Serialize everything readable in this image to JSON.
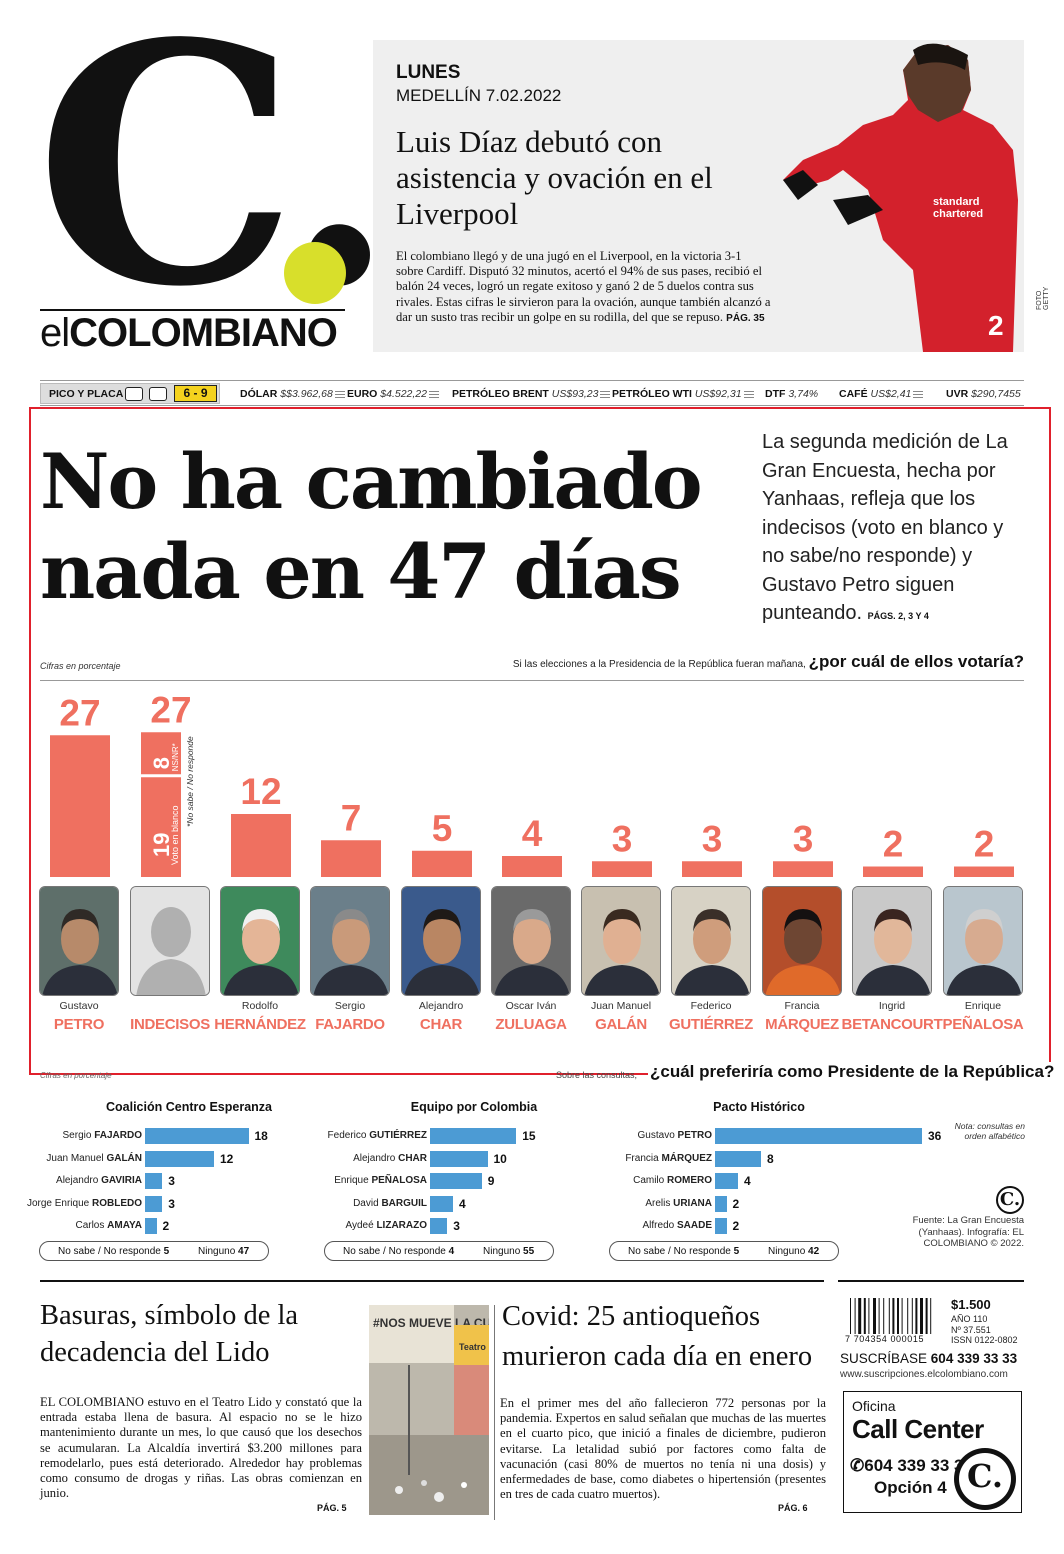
{
  "masthead": {
    "name_prefix": "el",
    "name_main": "COLOMBIANO",
    "logo_letter": "C."
  },
  "teaser": {
    "day": "LUNES",
    "date": "MEDELLÍN 7.02.2022",
    "headline": "Luis Díaz debutó con asistencia y ovación en el Liverpool",
    "body": "El colombiano llegó y de una jugó en el Liverpool, en la victoria 3-1 sobre Cardiff. Disputó 32 minutos, acertó el 94% de sus pases, recibió el balón 24 veces, logró un regate exitoso y ganó 2 de 5 duelos contra sus rivales. Estas cifras le sirvieron para la ovación, aunque también alcanzó a dar un susto tras recibir un golpe en su rodilla, del que se repuso.",
    "page": "PÁG. 35",
    "photo_credit": "FOTO GETTY"
  },
  "ticker": {
    "pico_label": "PICO Y PLACA",
    "pico_digits": "6 - 9",
    "items": [
      {
        "label": "DÓLAR",
        "value": "$$3.962,68"
      },
      {
        "label": "EURO",
        "value": "$4.522,22"
      },
      {
        "label": "PETRÓLEO BRENT",
        "value": "US$93,23"
      },
      {
        "label": "PETRÓLEO WTI",
        "value": "US$92,31"
      },
      {
        "label": "DTF",
        "value": "3,74%"
      },
      {
        "label": "CAFÉ",
        "value": "US$2,41"
      },
      {
        "label": "UVR",
        "value": "$290,7455"
      }
    ]
  },
  "main": {
    "headline_line1": "No ha cambiado",
    "headline_line2": "nada en 47 días",
    "deck": "La segunda medición de La Gran Encuesta, hecha por Yanhaas, refleja que los indecisos (voto en blanco y no sabe/no responde) y Gustavo Petro siguen punteando.",
    "deck_pages": "PÁGS. 2, 3 Y 4",
    "chart_note": "Cifras en porcentaje",
    "question_prefix": "Si las elecciones a la Presidencia de la República fueran mañana,",
    "question": "¿por cuál de ellos votaría?"
  },
  "chart_data": {
    "type": "bar",
    "unit": "Cifras en porcentaje",
    "title": "Si las elecciones a la Presidencia de la República fueran mañana, ¿por cuál de ellos votaría?",
    "color": "#ef7060",
    "categories": [
      "PETRO",
      "INDECISOS",
      "HERNÁNDEZ",
      "FAJARDO",
      "CHAR",
      "ZULUAGA",
      "GALÁN",
      "GUTIÉRREZ",
      "MÁRQUEZ",
      "BETANCOURT",
      "PEÑALOSA"
    ],
    "first_names": [
      "Gustavo",
      "",
      "Rodolfo",
      "Sergio",
      "Alejandro",
      "Oscar Iván",
      "Juan Manuel",
      "Federico",
      "Francia",
      "Ingrid",
      "Enrique"
    ],
    "values": [
      27,
      27,
      12,
      7,
      5,
      4,
      3,
      3,
      3,
      2,
      2
    ],
    "indecisos_breakdown": [
      {
        "label": "Voto en blanco",
        "value": 19
      },
      {
        "label": "NS/NR*",
        "value": 8
      }
    ],
    "indecisos_footnote": "*No sabe / No responde"
  },
  "consultas": {
    "title": "¿cuál preferiría como Presidente de la República?",
    "subtitle": "Sobre las consultas,",
    "note": "Cifras en porcentaje",
    "legal_note": "Nota: consultas en orden alfabético",
    "source": "Fuente: La Gran Encuesta (Yanhaas). Infografía: EL COLOMBIANO © 2022.",
    "coalitions": [
      {
        "name": "Coalición Centro Esperanza",
        "rows": [
          {
            "first": "Sergio",
            "last": "FAJARDO",
            "value": 18
          },
          {
            "first": "Juan Manuel",
            "last": "GALÁN",
            "value": 12
          },
          {
            "first": "Alejandro",
            "last": "GAVIRIA",
            "value": 3
          },
          {
            "first": "Jorge Enrique",
            "last": "ROBLEDO",
            "value": 3
          },
          {
            "first": "Carlos",
            "last": "AMAYA",
            "value": 2
          }
        ],
        "ns_label": "No sabe / No responde",
        "ns_value": "5",
        "ninguno_label": "Ninguno",
        "ninguno_value": "47"
      },
      {
        "name": "Equipo por Colombia",
        "rows": [
          {
            "first": "Federico",
            "last": "GUTIÉRREZ",
            "value": 15
          },
          {
            "first": "Alejandro",
            "last": "CHAR",
            "value": 10
          },
          {
            "first": "Enrique",
            "last": "PEÑALOSA",
            "value": 9
          },
          {
            "first": "David",
            "last": "BARGUIL",
            "value": 4
          },
          {
            "first": "Aydeé",
            "last": "LIZARAZO",
            "value": 3
          }
        ],
        "ns_label": "No sabe / No responde",
        "ns_value": "4",
        "ninguno_label": "Ninguno",
        "ninguno_value": "55"
      },
      {
        "name": "Pacto Histórico",
        "rows": [
          {
            "first": "Gustavo",
            "last": "PETRO",
            "value": 36
          },
          {
            "first": "Francia",
            "last": "MÁRQUEZ",
            "value": 8
          },
          {
            "first": "Camilo",
            "last": "ROMERO",
            "value": 4
          },
          {
            "first": "Arelis",
            "last": "URIANA",
            "value": 2
          },
          {
            "first": "Alfredo",
            "last": "SAADE",
            "value": 2
          }
        ],
        "ns_label": "No sabe / No responde",
        "ns_value": "5",
        "ninguno_label": "Ninguno",
        "ninguno_value": "42"
      }
    ]
  },
  "stories": {
    "lido_head": "Basuras, símbolo de la decadencia del Lido",
    "lido_body": "EL COLOMBIANO estuvo en el Teatro Lido y constató que la entrada estaba llena de basura. Al espacio no se le hizo mantenimiento durante un mes, lo que causó que los desechos se acumularan. La Alcaldía invertirá $3.200 millones para remodelarlo, pues está deteriorado. Alrededor hay problemas como consumo de drogas y riñas. Las obras comienzan en junio.",
    "lido_page": "PÁG. 5",
    "lido_photo_text": "#NOS MUEVE LA CULTURA",
    "lido_photo_sign": "Teatro",
    "covid_head": "Covid: 25 antioqueños murieron cada día en enero",
    "covid_body": "En el primer mes del año fallecieron 772 personas por la pandemia. Expertos en salud señalan que muchas de las muertes en el cuarto pico, que inició a finales de diciembre, pudieron evitarse. La letalidad subió por factores como falta de vacunación (casi 80% de muertos no tenía ni una dosis) y enfermedades de base, como diabetes o hipertensión (presentes en tres de cada cuatro muertos).",
    "covid_page": "PÁG. 6"
  },
  "sidebar": {
    "barcode_number": "7 704354 000015",
    "price": "$1.500",
    "year": "AÑO 110",
    "issue": "Nº 37.551",
    "issn": "ISSN 0122-0802",
    "subscribe_label": "SUSCRÍBASE",
    "subscribe_phone": "604 339 33 33",
    "subscribe_url": "www.suscripciones.elcolombiano.com",
    "cc_label": "Oficina",
    "cc_title": "Call Center",
    "cc_phone": "604 339 33 33",
    "cc_option": "Opción 4"
  }
}
